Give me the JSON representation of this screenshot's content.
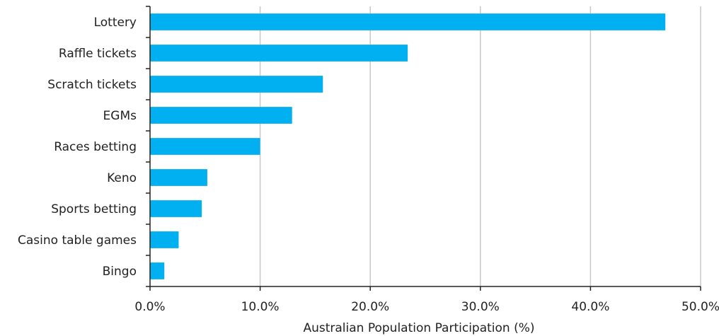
{
  "chart_data": {
    "type": "bar",
    "orientation": "horizontal",
    "categories": [
      "Lottery",
      "Raffle tickets",
      "Scratch tickets",
      "EGMs",
      "Races betting",
      "Keno",
      "Sports betting",
      "Casino table games",
      "Bingo"
    ],
    "values": [
      46.8,
      23.4,
      15.7,
      12.9,
      10.0,
      5.2,
      4.7,
      2.6,
      1.3
    ],
    "xlabel": "Australian Population Participation (%)",
    "xlim": [
      0,
      50
    ],
    "x_ticks": [
      "0.0%",
      "10.0%",
      "20.0%",
      "30.0%",
      "40.0%",
      "50.0%"
    ],
    "x_tick_values": [
      0,
      10,
      20,
      30,
      40,
      50
    ],
    "grid": "vertical",
    "bar_color": "#00B0F0",
    "legend": "none"
  }
}
